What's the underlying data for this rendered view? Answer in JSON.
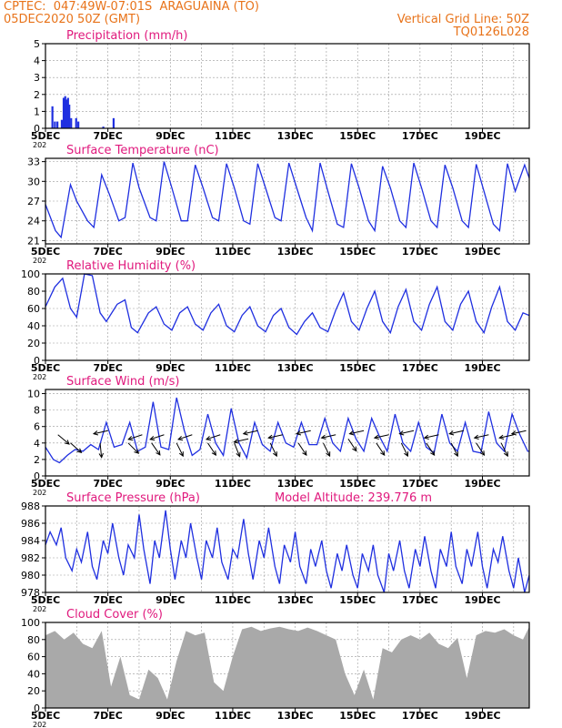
{
  "header": {
    "station_line": "CPTEC:  047:49W-07:01S  ARAGUAINA (TO)",
    "date_line": "05DEC2020 50Z (GMT)",
    "grid_line": "Vertical Grid Line: 50Z",
    "code": "TQ0126L028"
  },
  "x_ticks": [
    "5DEC",
    "7DEC",
    "9DEC",
    "11DEC",
    "13DEC",
    "15DEC",
    "17DEC",
    "19DEC"
  ],
  "x_tick_stub": "202",
  "colors": {
    "title": "#e0197d",
    "series": "#1f2fe0",
    "cloud": "#a9a9a9",
    "header": "#e8731a",
    "arrow": "#000000"
  },
  "chart_data": [
    {
      "type": "bar",
      "title": "Precipitation (mm/h)",
      "ylim": [
        0,
        5
      ],
      "yticks": [
        0,
        1,
        2,
        3,
        4,
        5
      ],
      "xlim": [
        0,
        15.5
      ],
      "x_unit": "days since 5DEC",
      "x": [
        0.22,
        0.3,
        0.38,
        0.52,
        0.58,
        0.63,
        0.68,
        0.72,
        0.76,
        0.82,
        0.98,
        1.05,
        1.85,
        2.18
      ],
      "values": [
        1.3,
        0.4,
        0.4,
        0.5,
        1.8,
        1.9,
        1.7,
        1.8,
        1.4,
        0.6,
        0.6,
        0.4,
        0.1,
        0.6
      ]
    },
    {
      "type": "line",
      "title": "Surface Temperature (nC)",
      "ylim": [
        20.5,
        33.5
      ],
      "yticks": [
        21,
        24,
        27,
        30,
        33
      ],
      "xlim": [
        0,
        15.5
      ],
      "x": [
        0,
        0.32,
        0.5,
        0.8,
        1.0,
        1.35,
        1.55,
        1.8,
        2.05,
        2.35,
        2.55,
        2.8,
        3.0,
        3.35,
        3.55,
        3.8,
        4.05,
        4.35,
        4.55,
        4.8,
        5.05,
        5.35,
        5.55,
        5.8,
        6.05,
        6.35,
        6.55,
        6.8,
        7.05,
        7.35,
        7.55,
        7.8,
        8.05,
        8.35,
        8.55,
        8.8,
        9.05,
        9.35,
        9.55,
        9.8,
        10.05,
        10.35,
        10.55,
        10.8,
        11.05,
        11.35,
        11.55,
        11.8,
        12.05,
        12.35,
        12.55,
        12.8,
        13.05,
        13.35,
        13.55,
        13.8,
        14.05,
        14.35,
        14.55,
        14.8,
        15.05,
        15.35,
        15.5
      ],
      "values": [
        26.5,
        22.5,
        21.5,
        29.5,
        27,
        24,
        23,
        31,
        28,
        24,
        24.5,
        32.8,
        29,
        24.5,
        24,
        33,
        29,
        24,
        24,
        32.5,
        29,
        24.5,
        24,
        32.7,
        29,
        24,
        23.5,
        32.7,
        29,
        24.5,
        24,
        32.8,
        29,
        24.5,
        22.5,
        32.8,
        28.5,
        23.5,
        23,
        32.7,
        29,
        24,
        22.5,
        32.3,
        29,
        24,
        23,
        32.8,
        29,
        24,
        23,
        32.5,
        29,
        24,
        23,
        32.6,
        28.5,
        23.5,
        22.5,
        32.7,
        28.5,
        32.5,
        30.5
      ]
    },
    {
      "type": "line",
      "title": "Relative Humidity (%)",
      "ylim": [
        0,
        100
      ],
      "yticks": [
        0,
        20,
        40,
        60,
        80,
        100
      ],
      "xlim": [
        0,
        15.5
      ],
      "x": [
        0,
        0.3,
        0.55,
        0.8,
        1.0,
        1.25,
        1.5,
        1.75,
        1.95,
        2.3,
        2.55,
        2.75,
        2.95,
        3.3,
        3.55,
        3.8,
        4.05,
        4.3,
        4.55,
        4.8,
        5.05,
        5.3,
        5.55,
        5.8,
        6.05,
        6.3,
        6.55,
        6.8,
        7.05,
        7.3,
        7.55,
        7.8,
        8.05,
        8.3,
        8.55,
        8.8,
        9.05,
        9.3,
        9.55,
        9.8,
        10.05,
        10.3,
        10.55,
        10.8,
        11.05,
        11.3,
        11.55,
        11.8,
        12.05,
        12.3,
        12.55,
        12.8,
        13.05,
        13.3,
        13.55,
        13.8,
        14.05,
        14.3,
        14.55,
        14.8,
        15.05,
        15.3,
        15.5
      ],
      "values": [
        62,
        85,
        95,
        60,
        50,
        100,
        98,
        55,
        45,
        65,
        70,
        38,
        32,
        55,
        62,
        42,
        35,
        55,
        62,
        42,
        35,
        55,
        65,
        40,
        33,
        52,
        62,
        40,
        33,
        52,
        60,
        38,
        30,
        45,
        55,
        38,
        33,
        58,
        78,
        45,
        35,
        60,
        80,
        45,
        32,
        62,
        82,
        45,
        35,
        65,
        85,
        45,
        35,
        65,
        80,
        45,
        32,
        62,
        85,
        45,
        35,
        55,
        52
      ]
    },
    {
      "type": "line",
      "title": "Surface Wind (m/s)",
      "ylim": [
        0,
        10.5
      ],
      "yticks": [
        0,
        2,
        4,
        6,
        8,
        10
      ],
      "xlim": [
        0,
        15.5
      ],
      "x": [
        0,
        0.25,
        0.45,
        0.7,
        0.95,
        1.2,
        1.45,
        1.7,
        1.95,
        2.2,
        2.45,
        2.7,
        2.95,
        3.2,
        3.45,
        3.7,
        3.95,
        4.2,
        4.45,
        4.7,
        4.95,
        5.2,
        5.45,
        5.7,
        5.95,
        6.2,
        6.45,
        6.7,
        6.95,
        7.2,
        7.45,
        7.7,
        7.95,
        8.2,
        8.45,
        8.7,
        8.95,
        9.2,
        9.45,
        9.7,
        9.95,
        10.2,
        10.45,
        10.7,
        10.95,
        11.2,
        11.45,
        11.7,
        11.95,
        12.2,
        12.45,
        12.7,
        12.95,
        13.2,
        13.45,
        13.7,
        13.95,
        14.2,
        14.45,
        14.7,
        14.95,
        15.2,
        15.45,
        15.5
      ],
      "values": [
        3.5,
        2,
        1.6,
        2.5,
        3.2,
        3,
        3.8,
        3.2,
        6.5,
        3.5,
        3.8,
        6.5,
        3,
        3.5,
        9,
        3.5,
        3.2,
        9.5,
        5.5,
        2.5,
        3.2,
        7.5,
        4,
        2.5,
        8.2,
        4,
        2.2,
        6.5,
        3.8,
        3,
        6.5,
        4,
        3.5,
        6.5,
        3.8,
        3.8,
        7,
        4,
        3,
        7,
        4.5,
        3,
        7,
        4.8,
        3,
        7.5,
        4,
        3,
        6.5,
        3.5,
        2.8,
        7.5,
        4,
        3,
        6.5,
        3,
        2.8,
        7.8,
        4,
        3,
        7.5,
        5,
        3,
        3
      ]
    },
    {
      "type": "line",
      "title": "Surface Pressure (hPa)",
      "annotation": "Model Altitude: 239.776 m",
      "ylim": [
        978,
        988
      ],
      "yticks": [
        978,
        980,
        982,
        984,
        986,
        988
      ],
      "xlim": [
        0,
        15.5
      ],
      "x": [
        0,
        0.15,
        0.35,
        0.5,
        0.65,
        0.85,
        1.0,
        1.15,
        1.35,
        1.5,
        1.65,
        1.85,
        2.0,
        2.15,
        2.35,
        2.5,
        2.65,
        2.85,
        3.0,
        3.15,
        3.35,
        3.5,
        3.65,
        3.85,
        4.0,
        4.15,
        4.35,
        4.5,
        4.65,
        4.85,
        5.0,
        5.15,
        5.35,
        5.5,
        5.65,
        5.85,
        6.0,
        6.15,
        6.35,
        6.5,
        6.65,
        6.85,
        7.0,
        7.15,
        7.35,
        7.5,
        7.65,
        7.85,
        8.0,
        8.15,
        8.35,
        8.5,
        8.65,
        8.85,
        9.0,
        9.15,
        9.35,
        9.5,
        9.65,
        9.85,
        10.0,
        10.15,
        10.35,
        10.5,
        10.65,
        10.85,
        11.0,
        11.15,
        11.35,
        11.5,
        11.65,
        11.85,
        12.0,
        12.15,
        12.35,
        12.5,
        12.65,
        12.85,
        13.0,
        13.15,
        13.35,
        13.5,
        13.65,
        13.85,
        14.0,
        14.15,
        14.35,
        14.5,
        14.65,
        14.85,
        15.0,
        15.15,
        15.35,
        15.5
      ],
      "values": [
        983.5,
        985,
        983.5,
        985.5,
        982,
        980.5,
        983,
        981.5,
        985,
        981,
        979.5,
        984,
        982.5,
        986,
        982,
        980,
        983.5,
        982,
        987,
        983,
        979,
        984,
        982,
        987.5,
        983,
        979.5,
        984,
        982,
        986,
        982,
        979.5,
        984,
        982,
        985.5,
        981.5,
        979.5,
        983,
        982,
        986.5,
        982.5,
        979.5,
        984,
        982,
        985.5,
        981,
        979,
        983.5,
        981.5,
        985,
        981,
        979,
        983,
        981,
        984,
        980.5,
        978.5,
        982.5,
        980.5,
        983.5,
        980,
        978.5,
        982.5,
        980.5,
        983.5,
        980,
        978,
        982.5,
        980.5,
        984,
        980.5,
        978.5,
        983,
        981,
        984.5,
        980.5,
        978.5,
        983,
        981,
        985,
        981,
        979,
        983,
        981,
        985,
        981,
        978.5,
        983,
        981.5,
        984.5,
        980.5,
        978.5,
        982,
        978,
        980
      ]
    },
    {
      "type": "area",
      "title": "Cloud Cover (%)",
      "ylim": [
        0,
        100
      ],
      "yticks": [
        0,
        20,
        40,
        60,
        80,
        100
      ],
      "xlim": [
        0,
        15.5
      ],
      "x": [
        0,
        0.3,
        0.6,
        0.9,
        1.2,
        1.5,
        1.8,
        2.1,
        2.4,
        2.7,
        3.0,
        3.3,
        3.6,
        3.9,
        4.2,
        4.5,
        4.8,
        5.1,
        5.4,
        5.7,
        6.0,
        6.3,
        6.6,
        6.9,
        7.2,
        7.5,
        7.8,
        8.1,
        8.4,
        8.7,
        9.0,
        9.3,
        9.6,
        9.9,
        10.2,
        10.5,
        10.8,
        11.1,
        11.4,
        11.7,
        12.0,
        12.3,
        12.6,
        12.9,
        13.2,
        13.5,
        13.8,
        14.1,
        14.4,
        14.7,
        15.0,
        15.3,
        15.5
      ],
      "values": [
        85,
        90,
        80,
        88,
        75,
        70,
        90,
        25,
        60,
        15,
        10,
        45,
        35,
        10,
        55,
        90,
        85,
        88,
        30,
        20,
        60,
        92,
        95,
        90,
        93,
        95,
        92,
        90,
        94,
        90,
        85,
        80,
        40,
        15,
        45,
        10,
        70,
        65,
        80,
        85,
        80,
        88,
        75,
        70,
        82,
        35,
        85,
        90,
        88,
        92,
        85,
        80,
        95
      ]
    },
    {
      "type": "vector",
      "title": "Surface Wind (m/s) direction",
      "x": [
        0.4,
        0.8,
        1.75,
        2.0,
        2.65,
        3.1,
        3.4,
        3.8,
        4.2,
        4.7,
        5.2,
        5.6,
        6.05,
        6.5,
        6.8,
        7.2,
        7.6,
        8.1,
        8.5,
        8.9,
        9.3,
        9.7,
        10.2,
        10.6,
        11.0,
        11.4,
        11.8,
        12.2,
        12.6,
        13.0,
        13.4,
        13.8,
        14.2,
        14.6,
        15.0,
        15.4
      ],
      "y": [
        5,
        4,
        4,
        5.5,
        4,
        5,
        4,
        5,
        4,
        5,
        4,
        5,
        4,
        4.5,
        5.5,
        4,
        5,
        4,
        5.5,
        4,
        5,
        4.5,
        5.5,
        4,
        5,
        4,
        5.5,
        4,
        5,
        4,
        5.5,
        4,
        5,
        4,
        5,
        5.5
      ],
      "u": [
        0.6,
        0.8,
        0.1,
        -0.9,
        0.8,
        -0.9,
        0.7,
        -0.9,
        0.5,
        -0.9,
        0.6,
        -0.9,
        0.4,
        -0.9,
        -0.9,
        0.5,
        -0.9,
        0.6,
        -0.9,
        0.5,
        -0.9,
        0.6,
        -0.9,
        0.6,
        -0.9,
        0.5,
        -0.9,
        0.6,
        -0.9,
        0.5,
        -0.9,
        0.6,
        -0.9,
        0.5,
        -0.9,
        -0.9
      ],
      "v": [
        0.5,
        0.7,
        1.0,
        0.2,
        0.8,
        0.3,
        1.0,
        0.3,
        1.0,
        0.3,
        0.9,
        0.3,
        1.0,
        0.2,
        0.2,
        1.0,
        0.2,
        0.9,
        0.2,
        1.0,
        0.2,
        0.9,
        0.2,
        0.9,
        0.2,
        1.0,
        0.2,
        0.9,
        0.2,
        1.0,
        0.2,
        0.9,
        0.2,
        1.0,
        0.2,
        0.2
      ]
    }
  ]
}
